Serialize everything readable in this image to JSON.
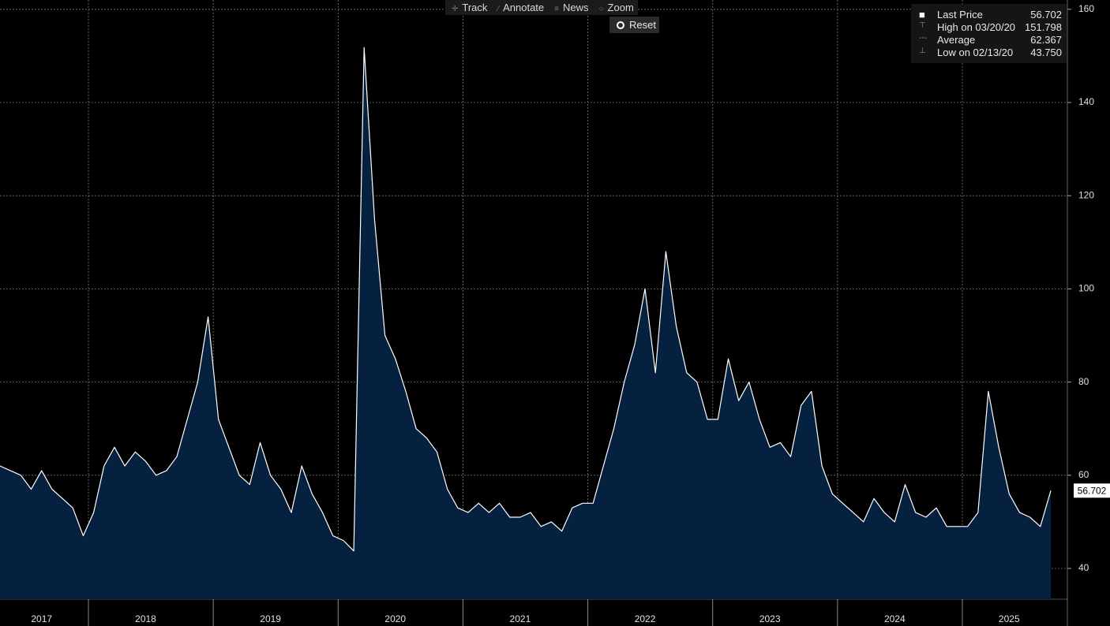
{
  "toolbar": {
    "buttons": [
      "Track",
      "Annotate",
      "News",
      "Zoom"
    ],
    "reset": "Reset"
  },
  "legend": {
    "rows": [
      {
        "label": "Last Price",
        "value": "56.702"
      },
      {
        "label": "High on 03/20/20",
        "value": "151.798"
      },
      {
        "label": "Average",
        "value": "62.367"
      },
      {
        "label": "Low on 02/13/20",
        "value": "43.750"
      }
    ]
  },
  "chart_data": {
    "type": "area",
    "categories": [
      null,
      null,
      null,
      null,
      "2017",
      null,
      null,
      null,
      null,
      null,
      null,
      null,
      null,
      null,
      "2018",
      null,
      null,
      null,
      null,
      null,
      null,
      null,
      null,
      null,
      null,
      null,
      "2019",
      null,
      null,
      null,
      null,
      null,
      null,
      null,
      null,
      null,
      null,
      null,
      "2020",
      null,
      null,
      null,
      null,
      null,
      null,
      null,
      null,
      null,
      null,
      null,
      "2021",
      null,
      null,
      null,
      null,
      null,
      null,
      null,
      null,
      null,
      null,
      null,
      "2022",
      null,
      null,
      null,
      null,
      null,
      null,
      null,
      null,
      null,
      null,
      null,
      "2023",
      null,
      null,
      null,
      null,
      null,
      null,
      null,
      null,
      null,
      null,
      null,
      "2024",
      null,
      null,
      null,
      null,
      null,
      null,
      null,
      null,
      null,
      null,
      "2025",
      null,
      null,
      null,
      null
    ],
    "series": [
      {
        "name": "Last Price",
        "color": "#ffffff",
        "fill": "#06203f",
        "values": [
          62,
          61,
          60,
          57,
          61,
          57,
          55,
          53,
          47,
          52,
          62,
          66,
          62,
          65,
          63,
          60,
          61,
          64,
          72,
          80,
          94,
          72,
          66,
          60,
          58,
          67,
          60,
          57,
          52,
          62,
          56,
          52,
          47,
          46,
          43.75,
          151.798,
          115,
          90,
          85,
          78,
          70,
          68,
          65,
          57,
          53,
          52,
          54,
          52,
          54,
          51,
          51,
          52,
          49,
          50,
          48,
          53,
          54,
          54,
          62,
          70,
          80,
          88,
          100,
          82,
          108,
          92,
          82,
          80,
          72,
          72,
          85,
          76,
          80,
          72,
          66,
          67,
          64,
          75,
          78,
          62,
          56,
          54,
          52,
          50,
          55,
          52,
          50,
          58,
          52,
          51,
          53,
          49,
          49,
          49,
          52,
          78,
          66,
          56,
          52,
          51,
          49,
          56.702
        ]
      }
    ],
    "last_label": "56.702",
    "ylim": [
      33.4,
      162
    ],
    "yticks": [
      40,
      60,
      80,
      100,
      120,
      140,
      160
    ],
    "grid": true
  }
}
